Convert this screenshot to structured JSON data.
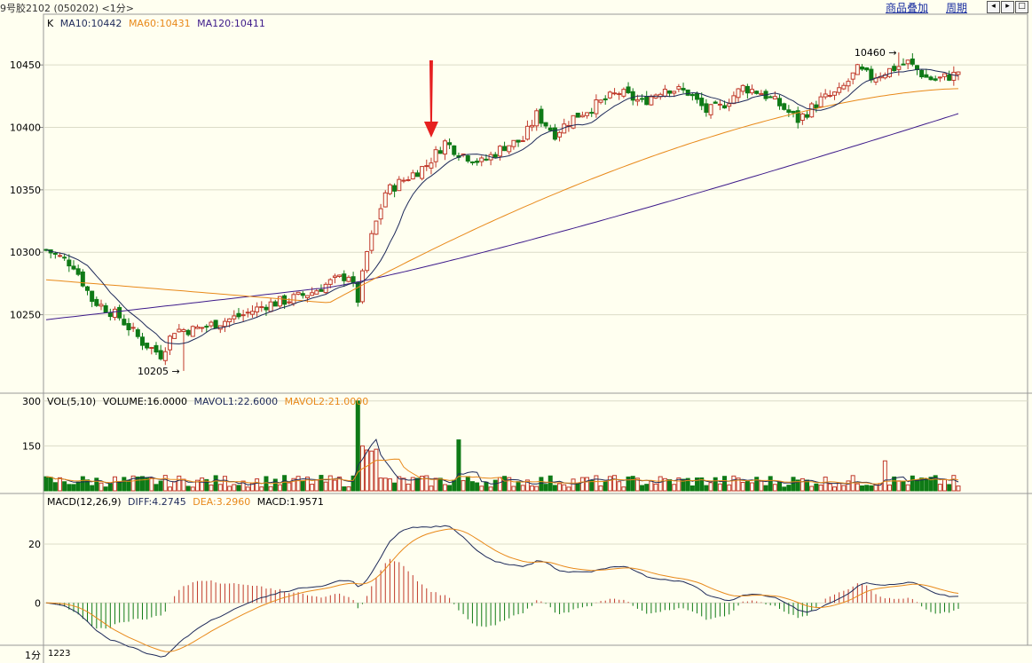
{
  "window": {
    "title": "9号胶2102 (050202) <1分>",
    "toolbar": {
      "overlay_label": "商品叠加",
      "period_label": "周期"
    },
    "icons": [
      "arrow-left-icon",
      "arrow-right-icon",
      "maximize-icon"
    ]
  },
  "price_panel": {
    "indicator_legend": {
      "k": "K",
      "ma10": "MA10:10442",
      "ma60": "MA60:10431",
      "ma120": "MA120:10411"
    },
    "y_ticks": [
      "10450",
      "10400",
      "10350",
      "10300",
      "10250"
    ],
    "high_label": "10460",
    "low_label": "10205"
  },
  "volume_panel": {
    "legend": {
      "vol": "VOL(5,10)",
      "volume": "VOLUME:16.0000",
      "mavol1": "MAVOL1:22.6000",
      "mavol2": "MAVOL2:21.0000"
    },
    "y_ticks": [
      "300",
      "150"
    ]
  },
  "macd_panel": {
    "legend": {
      "macd": "MACD(12,26,9)",
      "diff": "DIFF:4.2745",
      "dea": "DEA:3.2960",
      "macdv": "MACD:1.9571"
    },
    "y_ticks": [
      "20",
      "0"
    ]
  },
  "footer": {
    "period_label": "1分",
    "time_label": "1223"
  },
  "colors": {
    "background": "#fffff0",
    "grid": "#dcdcc8",
    "up": "#c0392b",
    "down": "#0f7a16",
    "ma10": "#1e2a5a",
    "ma60": "#e8891a",
    "ma120": "#3d1a8a",
    "arrow": "#e62020",
    "axis": "#888888"
  },
  "chart_data": {
    "type": "candlestick",
    "price_axis": {
      "ylim": [
        10190,
        10475
      ],
      "ticks": [
        10250,
        10300,
        10350,
        10400,
        10450
      ]
    },
    "key_points": [
      {
        "label": "10460",
        "value": 10460
      },
      {
        "label": "10205",
        "value": 10205
      }
    ],
    "ma_final": {
      "MA10": 10442,
      "MA60": 10431,
      "MA120": 10411
    },
    "macd_final": {
      "DIFF": 4.2745,
      "DEA": 3.296,
      "MACD": 1.9571
    },
    "volume_final": {
      "VOLUME": 16,
      "MAVOL1": 22.6,
      "MAVOL2": 21
    },
    "macd_ylim": [
      -12,
      33
    ],
    "vol_ylim": [
      0,
      320
    ]
  }
}
